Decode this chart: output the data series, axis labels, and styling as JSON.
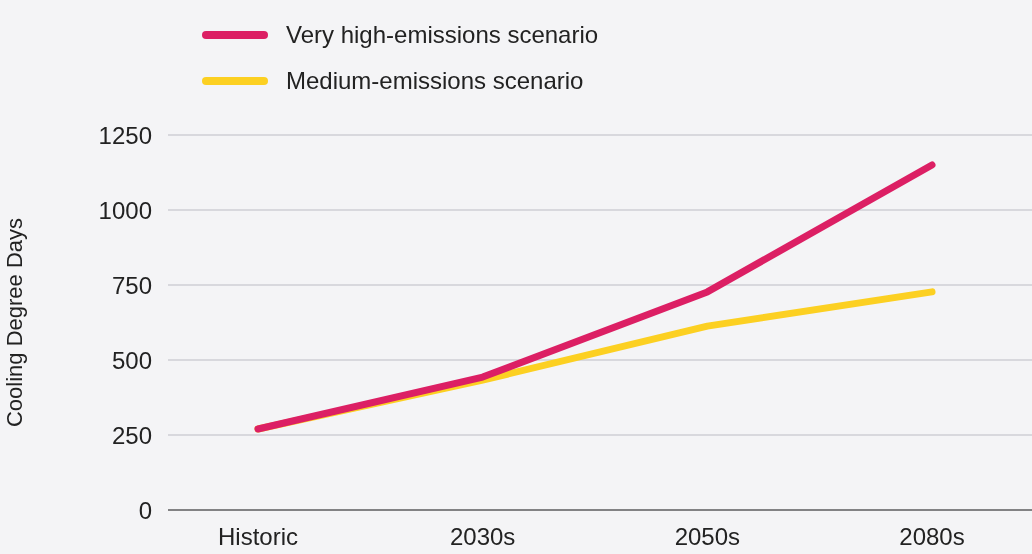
{
  "chart_data": {
    "type": "line",
    "ylabel": "Cooling Degree Days",
    "categories": [
      "Historic",
      "2030s",
      "2050s",
      "2080s"
    ],
    "series": [
      {
        "name": "Very high-emissions scenario",
        "color": "#dc1f64",
        "values": [
          270,
          443,
          727,
          1150
        ]
      },
      {
        "name": "Medium-emissions scenario",
        "color": "#fcd022",
        "values": [
          270,
          433,
          613,
          727
        ]
      }
    ],
    "ylim": [
      0,
      1250
    ],
    "yticks": [
      0,
      250,
      500,
      750,
      1000,
      1250
    ],
    "grid": "y",
    "legend": "top left",
    "marker": "none",
    "line_style": "solid"
  }
}
